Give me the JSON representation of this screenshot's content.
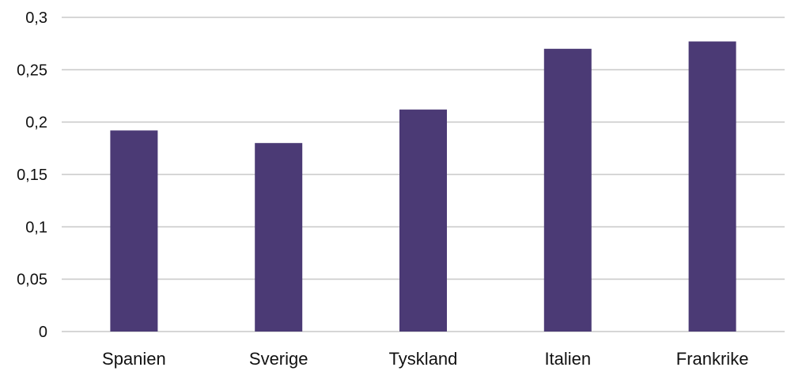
{
  "chart_data": {
    "type": "bar",
    "categories": [
      "Spanien",
      "Sverige",
      "Tyskland",
      "Italien",
      "Frankrike"
    ],
    "values": [
      0.192,
      0.18,
      0.212,
      0.27,
      0.277
    ],
    "ylim": [
      0,
      0.3
    ],
    "yticks": [
      {
        "value": 0,
        "label": "0"
      },
      {
        "value": 0.05,
        "label": "0,05"
      },
      {
        "value": 0.1,
        "label": "0,1"
      },
      {
        "value": 0.15,
        "label": "0,15"
      },
      {
        "value": 0.2,
        "label": "0,2"
      },
      {
        "value": 0.25,
        "label": "0,25"
      },
      {
        "value": 0.3,
        "label": "0,3"
      }
    ],
    "grid": true,
    "legend": "none",
    "title": "",
    "xlabel": "",
    "ylabel": "",
    "bar_color": "#4b3a75",
    "grid_color": "#c8c8c8"
  }
}
